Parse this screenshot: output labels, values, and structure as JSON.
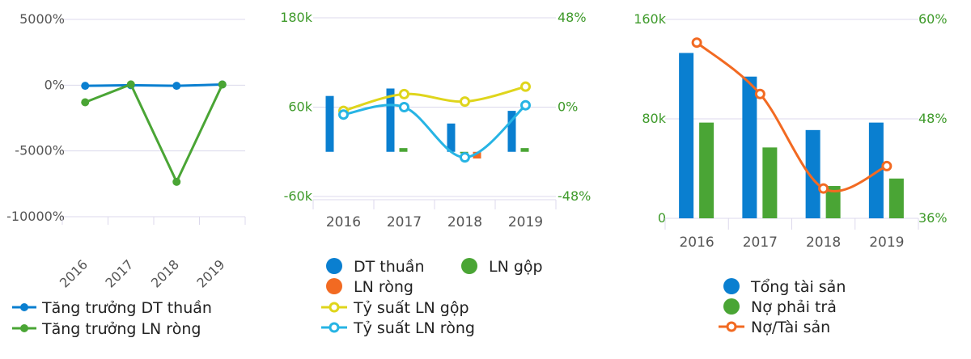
{
  "colors": {
    "blue": "#0a7fd0",
    "green": "#4aa535",
    "orange": "#f26a22",
    "yellow": "#dfd51c",
    "cyan": "#27b4e4",
    "axis_text": "#555555",
    "axis_green": "#3e9a2a",
    "grid": "#dcd9ec"
  },
  "chart_data": [
    {
      "type": "line",
      "categories": [
        "2016",
        "2017",
        "2018",
        "2019"
      ],
      "ylim": [
        -10000,
        5000
      ],
      "yticks": [
        "5000%",
        "0%",
        "-5000%",
        "-10000%"
      ],
      "ytick_values": [
        5000,
        0,
        -5000,
        -10000
      ],
      "series": [
        {
          "name": "Tăng trưởng DT thuần",
          "color_key": "blue",
          "values": [
            -50,
            0,
            -50,
            50
          ]
        },
        {
          "name": "Tăng trưởng LN ròng",
          "color_key": "green",
          "values": [
            -1300,
            60,
            -7350,
            50
          ]
        }
      ]
    },
    {
      "type": "bar",
      "categories": [
        "2016",
        "2017",
        "2018",
        "2019"
      ],
      "y_left": {
        "ylim": [
          -60000,
          180000
        ],
        "ticks": [
          "180k",
          "60k",
          "-60k"
        ],
        "tick_values": [
          180000,
          60000,
          -60000
        ]
      },
      "y_right": {
        "ylim": [
          -48,
          48
        ],
        "ticks": [
          "48%",
          "0%",
          "-48%"
        ],
        "tick_values": [
          48,
          0,
          -48
        ]
      },
      "bar_series": [
        {
          "name": "DT thuần",
          "color_key": "blue",
          "values": [
            75000,
            85000,
            38000,
            55000
          ]
        },
        {
          "name": "LN gộp",
          "color_key": "green",
          "values": [
            0,
            5000,
            -2000,
            5000
          ]
        },
        {
          "name": "LN ròng",
          "color_key": "orange",
          "values": [
            0,
            0,
            -9000,
            0
          ]
        }
      ],
      "line_series": [
        {
          "name": "Tỷ suất LN gộp",
          "color_key": "yellow",
          "values": [
            -2,
            7,
            3,
            11
          ]
        },
        {
          "name": "Tỷ suất LN ròng",
          "color_key": "cyan",
          "values": [
            -4,
            0,
            -27,
            1
          ]
        }
      ],
      "legend": {
        "row1": [
          "DT thuần",
          "LN gộp"
        ],
        "row2": [
          "LN ròng"
        ],
        "row3": [
          "Tỷ suất LN gộp"
        ],
        "row4": [
          "Tỷ suất LN ròng"
        ]
      }
    },
    {
      "type": "bar",
      "categories": [
        "2016",
        "2017",
        "2018",
        "2019"
      ],
      "y_left": {
        "ylim": [
          0,
          160000
        ],
        "ticks": [
          "160k",
          "80k",
          "0"
        ],
        "tick_values": [
          160000,
          80000,
          0
        ]
      },
      "y_right": {
        "ylim": [
          36,
          60
        ],
        "ticks": [
          "60%",
          "48%",
          "36%"
        ],
        "tick_values": [
          60,
          48,
          36
        ]
      },
      "bar_series": [
        {
          "name": "Tổng tài sản",
          "color_key": "blue",
          "values": [
            133000,
            114000,
            71000,
            77000
          ]
        },
        {
          "name": "Nợ phải trả",
          "color_key": "green",
          "values": [
            77000,
            57000,
            26000,
            32000
          ]
        }
      ],
      "line_series": [
        {
          "name": "Nợ/Tài sản",
          "color_key": "orange",
          "values": [
            57.2,
            51,
            39.6,
            42.3
          ]
        }
      ]
    }
  ]
}
